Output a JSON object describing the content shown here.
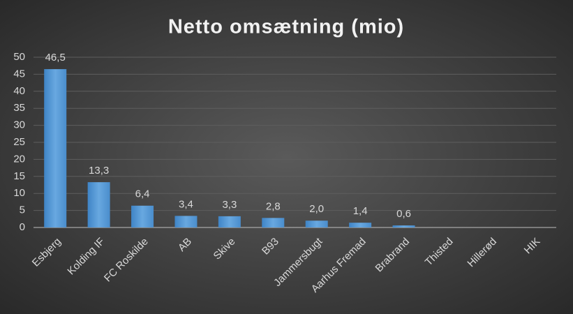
{
  "chart_data": {
    "type": "bar",
    "title": "Netto omsætning (mio)",
    "categories": [
      "Esbjerg",
      "Kolding IF",
      "FC Roskilde",
      "AB",
      "Skive",
      "B93",
      "Jammersbugt",
      "Aarhus Fremad",
      "Brabrand",
      "Thisted",
      "Hillerød",
      "HIK"
    ],
    "values": [
      46.5,
      13.3,
      6.4,
      3.4,
      3.3,
      2.8,
      2.0,
      1.4,
      0.6,
      null,
      null,
      null
    ],
    "value_labels": [
      "46,5",
      "13,3",
      "6,4",
      "3,4",
      "3,3",
      "2,8",
      "2,0",
      "1,4",
      "0,6",
      null,
      null,
      null
    ],
    "color": "#5b9bd5",
    "ylim": [
      0,
      50
    ],
    "yticks": [
      0,
      5,
      10,
      15,
      20,
      25,
      30,
      35,
      40,
      45,
      50
    ],
    "grid": true
  }
}
